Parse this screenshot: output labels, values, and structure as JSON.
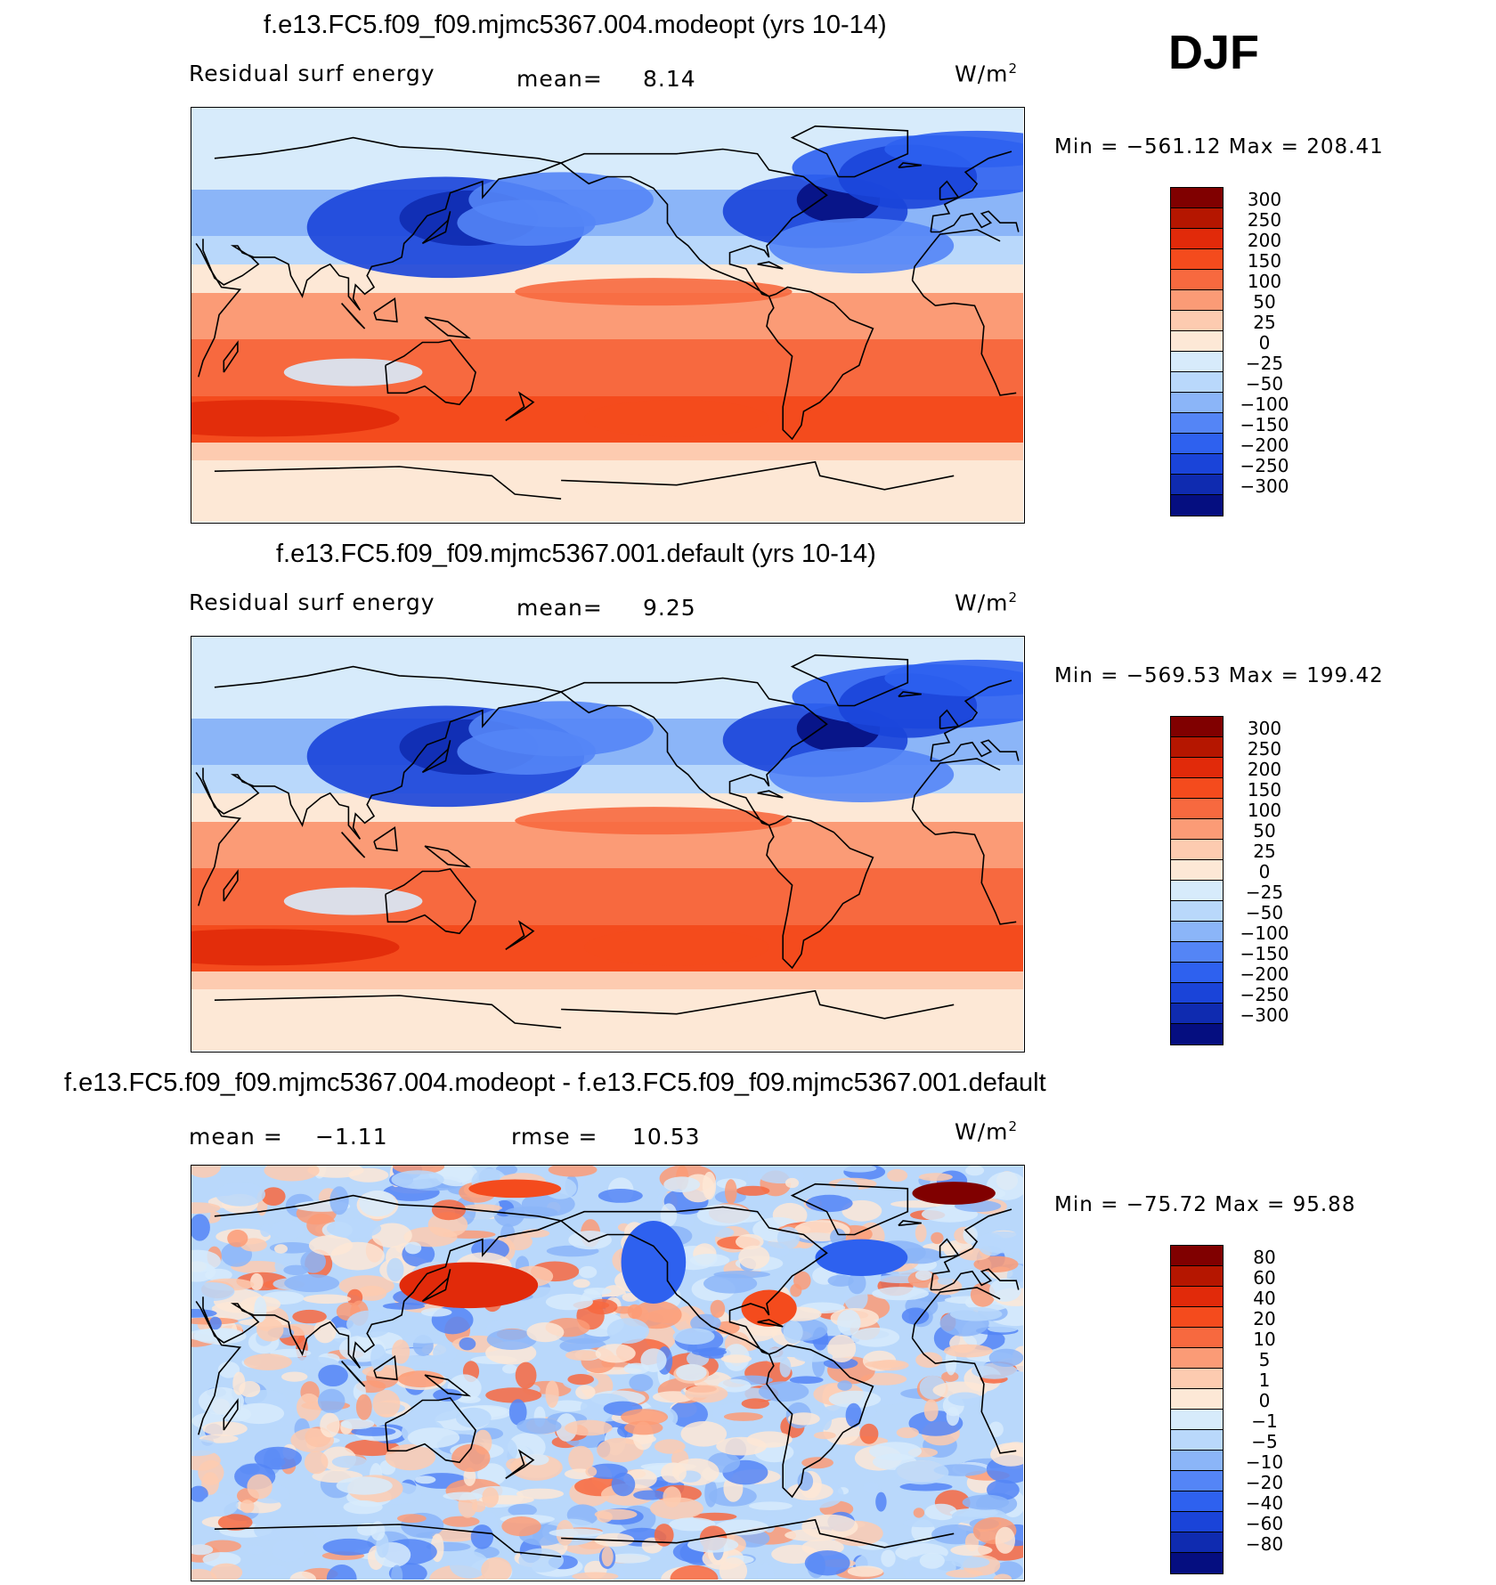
{
  "season": "DJF",
  "units": "W/m",
  "units_sup": "2",
  "colors": {
    "pos": [
      "#fde8d6",
      "#fdcbb0",
      "#fb9b76",
      "#f7693f",
      "#f44b1d",
      "#e12a0a",
      "#b51600",
      "#800000"
    ],
    "neg": [
      "#d7ebfb",
      "#b9d8fb",
      "#8bb5f8",
      "#5485f6",
      "#2e61ef",
      "#1a44d9",
      "#0f2bb0",
      "#050e80"
    ],
    "land": "#fde8d6",
    "landCold": "#d7ebfb"
  },
  "panels": [
    {
      "title": "f.e13.FC5.f09_f09.mjmc5367.004.modeopt (yrs 10-14)",
      "variable": "Residual surf energy",
      "stat1_label": "mean=",
      "stat1_value": "8.14",
      "min_label": "Min =",
      "min_value": "−561.12",
      "max_label": "Max =",
      "max_value": "208.41",
      "colorbar_ticks": [
        "300",
        "250",
        "200",
        "150",
        "100",
        "50",
        "25",
        "0",
        "−25",
        "−50",
        "−100",
        "−150",
        "−200",
        "−250",
        "−300"
      ]
    },
    {
      "title": "f.e13.FC5.f09_f09.mjmc5367.001.default (yrs 10-14)",
      "variable": "Residual surf energy",
      "stat1_label": "mean=",
      "stat1_value": "9.25",
      "min_label": "Min =",
      "min_value": "−569.53",
      "max_label": "Max =",
      "max_value": "199.42",
      "colorbar_ticks": [
        "300",
        "250",
        "200",
        "150",
        "100",
        "50",
        "25",
        "0",
        "−25",
        "−50",
        "−100",
        "−150",
        "−200",
        "−250",
        "−300"
      ]
    },
    {
      "title": "f.e13.FC5.f09_f09.mjmc5367.004.modeopt - f.e13.FC5.f09_f09.mjmc5367.001.default",
      "stat1_label": "mean =",
      "stat1_value": "−1.11",
      "stat2_label": "rmse =",
      "stat2_value": "10.53",
      "min_label": "Min =",
      "min_value": "−75.72",
      "max_label": "Max =",
      "max_value": "95.88",
      "colorbar_ticks": [
        "80",
        "60",
        "40",
        "20",
        "10",
        "5",
        "1",
        "0",
        "−1",
        "−5",
        "−10",
        "−20",
        "−40",
        "−60",
        "−80"
      ]
    }
  ],
  "chart_data": [
    {
      "type": "heatmap",
      "title": "f.e13.FC5.f09_f09.mjmc5367.004.modeopt (yrs 10-14)",
      "field": "Residual surf energy",
      "units": "W/m2",
      "season": "DJF",
      "mean": 8.14,
      "min": -561.12,
      "max": 208.41,
      "colorbar_levels": [
        300,
        250,
        200,
        150,
        100,
        50,
        25,
        0,
        -25,
        -50,
        -100,
        -150,
        -200,
        -250,
        -300
      ],
      "pattern": "strong negative values over Kuroshio, Gulf Stream and North Atlantic; positive values over tropical and Southern Hemisphere oceans"
    },
    {
      "type": "heatmap",
      "title": "f.e13.FC5.f09_f09.mjmc5367.001.default (yrs 10-14)",
      "field": "Residual surf energy",
      "units": "W/m2",
      "season": "DJF",
      "mean": 9.25,
      "min": -569.53,
      "max": 199.42,
      "colorbar_levels": [
        300,
        250,
        200,
        150,
        100,
        50,
        25,
        0,
        -25,
        -50,
        -100,
        -150,
        -200,
        -250,
        -300
      ]
    },
    {
      "type": "heatmap",
      "title": "f.e13.FC5.f09_f09.mjmc5367.004.modeopt - f.e13.FC5.f09_f09.mjmc5367.001.default",
      "units": "W/m2",
      "season": "DJF",
      "mean": -1.11,
      "rmse": 10.53,
      "min": -75.72,
      "max": 95.88,
      "colorbar_levels": [
        80,
        60,
        40,
        20,
        10,
        5,
        1,
        0,
        -1,
        -5,
        -10,
        -20,
        -40,
        -60,
        -80
      ]
    }
  ]
}
